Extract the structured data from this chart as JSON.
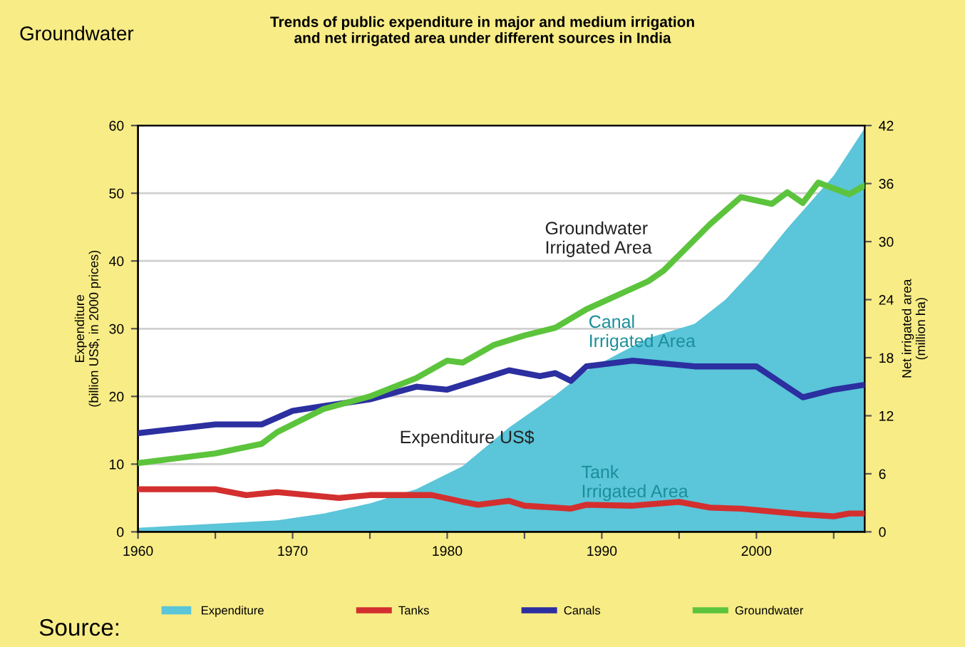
{
  "chart_data": {
    "type": "line",
    "title": "Trends of public expenditure in major and medium irrigation\nand net irrigated area under different sources in India",
    "ylabel": "Expenditure\n(billion US$, in 2000 prices)",
    "y2label": "Net irrigated area\n(million ha)",
    "xlim": [
      1960,
      2007
    ],
    "xticks": [
      1960,
      {
        "value": 1965,
        "label": null
      },
      1970,
      {
        "value": 1975,
        "label": null
      },
      1980,
      {
        "value": 1985,
        "label": null
      },
      1990,
      {
        "value": 1995,
        "label": null
      },
      2000,
      {
        "value": 2005,
        "label": null
      }
    ],
    "ylim": [
      0,
      60
    ],
    "yticks": [
      0,
      10,
      20,
      30,
      40,
      50,
      60
    ],
    "y2lim": [
      0,
      42
    ],
    "y2ticks": [
      0,
      6,
      12,
      18,
      24,
      30,
      36,
      42
    ],
    "grid": "y",
    "legend": "bottom",
    "line_style": "solid",
    "marker": "none",
    "series": [
      {
        "name": "Expenditure",
        "type": "area",
        "color": "#5bc5d9",
        "x": [
          1960,
          1969,
          1972,
          1975,
          1978,
          1981,
          1984,
          1987,
          1989,
          1993,
          1996,
          1998,
          2000,
          2002,
          2005,
          2007
        ],
        "values": [
          0.6,
          1.7,
          2.7,
          4.2,
          6.3,
          9.7,
          15.4,
          20.2,
          23.8,
          28.6,
          30.7,
          34.3,
          39.2,
          44.8,
          52.6,
          59.6
        ]
      },
      {
        "name": "Tanks",
        "axis": "y2",
        "color": "#d32f2f",
        "x": [
          1960,
          1965,
          1967,
          1969,
          1973,
          1975,
          1977,
          1979,
          1981,
          1982,
          1984,
          1985,
          1987,
          1988,
          1989,
          1992,
          1995,
          1997,
          1999,
          2003,
          2005,
          2006,
          2007
        ],
        "values": [
          4.4,
          4.4,
          3.8,
          4.1,
          3.5,
          3.8,
          3.8,
          3.8,
          3.1,
          2.8,
          3.2,
          2.7,
          2.5,
          2.4,
          2.8,
          2.7,
          3.1,
          2.5,
          2.4,
          1.8,
          1.6,
          1.9,
          1.9
        ]
      },
      {
        "name": "Canals",
        "axis": "y2",
        "color": "#2b2fa0",
        "x": [
          1960,
          1965,
          1968,
          1970,
          1972,
          1975,
          1978,
          1980,
          1983,
          1984,
          1986,
          1987,
          1988,
          1989,
          1992,
          1996,
          2000,
          2003,
          2005,
          2007
        ],
        "values": [
          10.2,
          11.1,
          11.1,
          12.5,
          13.0,
          13.7,
          15.0,
          14.7,
          16.2,
          16.7,
          16.1,
          16.4,
          15.6,
          17.1,
          17.7,
          17.1,
          17.1,
          13.9,
          14.7,
          15.2
        ]
      },
      {
        "name": "Groundwater",
        "axis": "y2",
        "color": "#5cc43c",
        "x": [
          1960,
          1965,
          1968,
          1969,
          1972,
          1975,
          1978,
          1980,
          1981,
          1983,
          1985,
          1987,
          1989,
          1993,
          1994,
          1997,
          1999,
          2001,
          2002,
          2003,
          2004,
          2006,
          2007
        ],
        "values": [
          7.1,
          8.1,
          9.1,
          10.3,
          12.7,
          14.0,
          15.9,
          17.7,
          17.5,
          19.3,
          20.3,
          21.1,
          23.0,
          25.9,
          27.0,
          31.8,
          34.6,
          33.9,
          35.1,
          34.0,
          36.1,
          34.9,
          35.8
        ]
      }
    ],
    "annotations": [
      "Groundwater",
      "Source:",
      "Groundwater\nIrrigated Area",
      "Canal\nIrrigated Area",
      "Tank\nIrrigated Area",
      "Expenditure US$"
    ]
  }
}
